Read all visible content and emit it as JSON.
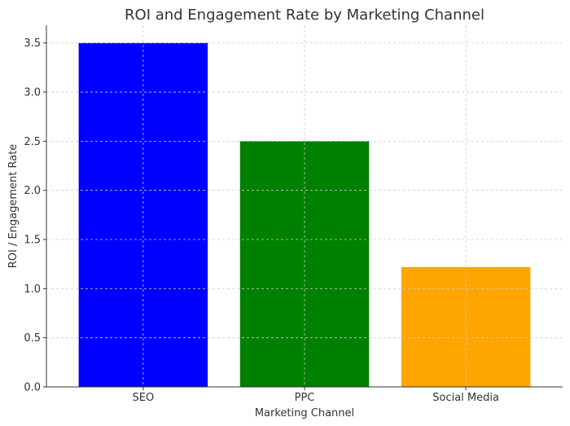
{
  "chart_data": {
    "type": "bar",
    "title": "ROI and Engagement Rate by Marketing Channel",
    "xlabel": "Marketing Channel",
    "ylabel": "ROI / Engagement Rate",
    "categories": [
      "SEO",
      "PPC",
      "Social Media"
    ],
    "values": [
      3.5,
      2.5,
      1.22
    ],
    "colors": [
      "#0000ff",
      "#008000",
      "#ffa500"
    ],
    "ylim": [
      0,
      3.68
    ],
    "yticks": [
      0.0,
      0.5,
      1.0,
      1.5,
      2.0,
      2.5,
      3.0,
      3.5
    ],
    "ytick_labels": [
      "0.0",
      "0.5",
      "1.0",
      "1.5",
      "2.0",
      "2.5",
      "3.0",
      "3.5"
    ],
    "grid": true
  }
}
